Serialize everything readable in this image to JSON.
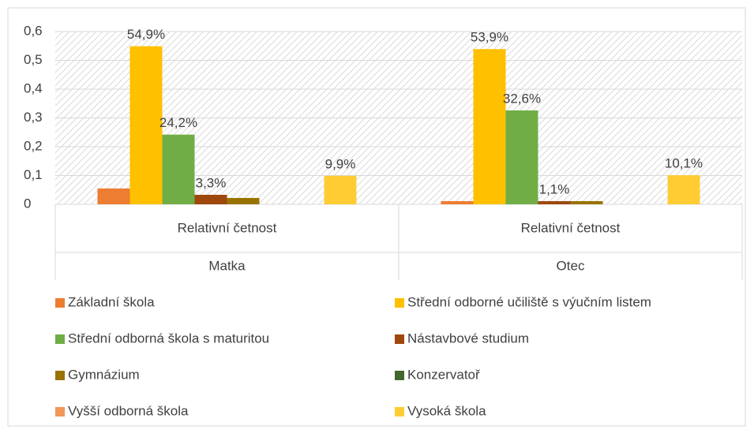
{
  "chart_data": {
    "type": "bar",
    "categories": [
      "Matka",
      "Otec"
    ],
    "category_sublabels": [
      "Relativní četnost",
      "Relativní četnost"
    ],
    "series": [
      {
        "name": "Základní škola",
        "color": "#ED7D31",
        "values": [
          0.055,
          0.011
        ]
      },
      {
        "name": "Střední odborné učiliště s výučním listem",
        "color": "#FFC000",
        "values": [
          0.549,
          0.539
        ],
        "value_labels": [
          "54,9%",
          "53,9%"
        ]
      },
      {
        "name": "Střední odborná škola s maturitou",
        "color": "#70AD47",
        "values": [
          0.242,
          0.326
        ],
        "value_labels": [
          "24,2%",
          "32,6%"
        ]
      },
      {
        "name": "Nástavbové studium",
        "color": "#9E480E",
        "values": [
          0.033,
          0.011
        ],
        "value_labels": [
          "3,3%",
          "1,1%"
        ]
      },
      {
        "name": "Gymnázium",
        "color": "#997300",
        "values": [
          0.022,
          0.011
        ]
      },
      {
        "name": "Konzervatoř",
        "color": "#43682B",
        "values": [
          0,
          0
        ]
      },
      {
        "name": "Vyšší odborná škola",
        "color": "#F1975A",
        "values": [
          0,
          0
        ]
      },
      {
        "name": "Vysoká škola",
        "color": "#FFCD33",
        "values": [
          0.099,
          0.101
        ],
        "value_labels": [
          "9,9%",
          "10,1%"
        ]
      }
    ],
    "ylim": [
      0,
      0.6
    ],
    "yticks": [
      0,
      {
        "value": 0.1,
        "label": "0,1"
      },
      {
        "value": 0.2,
        "label": "0,2"
      },
      {
        "value": 0.3,
        "label": "0,3"
      },
      {
        "value": 0.4,
        "label": "0,4"
      },
      {
        "value": 0.5,
        "label": "0,5"
      },
      {
        "value": 0.6,
        "label": "0,6"
      }
    ],
    "grid": true,
    "legend": "bottom"
  }
}
